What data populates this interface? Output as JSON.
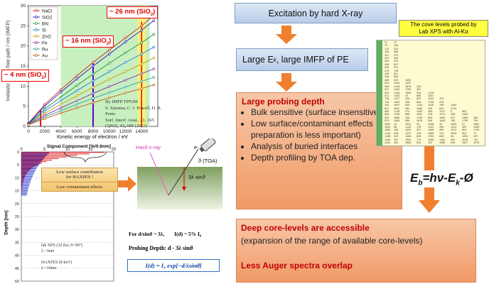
{
  "imfp_chart": {
    "ylabel": "Inelastic mean free path / nm (IMFP)",
    "xlabel": "Kinetic energy of electron / eV",
    "x_ticks": [
      "0",
      "2000",
      "4000",
      "6000",
      "8000",
      "10000",
      "12000",
      "14000"
    ],
    "y_ticks": [
      "0",
      "5",
      "10",
      "15",
      "20",
      "25",
      "30"
    ],
    "legend": [
      "NaCl",
      "SiO2",
      "BN",
      "Si",
      "ZnO",
      "Fe",
      "Ru",
      "Au"
    ],
    "annotation_26": "~ 26 nm (SiO",
    "annotation_16": "~ 16 nm (SiO",
    "annotation_4": "~ 4 nm (SiO",
    "sub2": "2",
    "close_paren": ")",
    "citation_1": "By IMFP TPP2M",
    "citation_2": "S. Tanuma, C. J. Powell, D. R. Penn:",
    "citation_3": "Surf. Interf. Anal., 21, 165 (1993), 43, 689 (2011)"
  },
  "chart_data": {
    "type": "line",
    "x": [
      0,
      2000,
      4000,
      6000,
      8000,
      10000,
      12000,
      14000,
      15500
    ],
    "xlim": [
      0,
      16000
    ],
    "ylim": [
      0,
      30
    ],
    "xlabel": "Kinetic energy of electron / eV",
    "ylabel": "Inelastic mean free path / nm (IMFP)",
    "series": [
      {
        "name": "NaCl",
        "color": "#d02020",
        "values": [
          0.8,
          5.4,
          9.1,
          12.6,
          15.9,
          19.0,
          22.0,
          25.0,
          27.6
        ]
      },
      {
        "name": "SiO2",
        "color": "#2020c0",
        "values": [
          0.7,
          5.0,
          8.5,
          11.8,
          15.0,
          18.0,
          21.0,
          23.9,
          26.3
        ]
      },
      {
        "name": "BN",
        "color": "#209040",
        "values": [
          0.6,
          4.3,
          7.3,
          10.2,
          13.0,
          15.7,
          18.3,
          20.8,
          22.9
        ]
      },
      {
        "name": "Si",
        "color": "#2080d0",
        "values": [
          0.6,
          3.8,
          6.4,
          8.9,
          11.3,
          13.6,
          15.9,
          18.0,
          19.7
        ]
      },
      {
        "name": "ZnO",
        "color": "#c0a000",
        "values": [
          0.5,
          3.2,
          5.5,
          7.6,
          9.7,
          11.7,
          13.6,
          15.5,
          17.0
        ]
      },
      {
        "name": "Fe",
        "color": "#8030a0",
        "values": [
          0.5,
          2.7,
          4.6,
          6.4,
          8.2,
          9.9,
          11.5,
          13.1,
          14.3
        ]
      },
      {
        "name": "Ru",
        "color": "#30a0a0",
        "values": [
          0.4,
          2.3,
          3.9,
          5.5,
          7.0,
          8.4,
          9.8,
          11.2,
          12.2
        ]
      },
      {
        "name": "Au",
        "color": "#c06010",
        "values": [
          0.4,
          1.9,
          3.3,
          4.6,
          5.9,
          7.1,
          8.3,
          9.4,
          10.3
        ]
      }
    ]
  },
  "signal_chart": {
    "title": "Signal Component [%/0.6nm]",
    "x_ticks": [
      "0",
      "5",
      "10",
      "15",
      "20"
    ],
    "y_ticks": [
      "0",
      "5",
      "10",
      "15",
      "20",
      "25",
      "30",
      "35",
      "40",
      "45",
      "50"
    ],
    "ylabel": "Depth [nm]",
    "note_1": "Low surface contribution",
    "note_2": "for HAXPES !",
    "note_3": "Low contaminant effects",
    "lab1": "lab XPS (Al Kα, 0=90°)",
    "lab1b": "λ ~3nm",
    "lab2": "HAXPES (8 keV)",
    "lab2b": "λ ~10nm"
  },
  "probe_diagram": {
    "hard_xray": "Hard x-ray",
    "electron": "e-",
    "toa": "ϑ (TOA)",
    "depth": "3λ sinϑ",
    "for_text": "For d/sinϑ ~ 3λ,",
    "intensity": "I(d) ~ 5% I₀",
    "probing_depth": "Probing Depth:  d - 3λ sinϑ",
    "formula": "I(d) = I₀ exp[−d/λsinϑ]"
  },
  "flow": {
    "excitation": "Excitation by hard X-ray",
    "large_ek_1": "Large E",
    "large_ek_sub": "k",
    "large_ek_2": ",  large IMFP of PE",
    "large_probing_title": "Large probing depth",
    "bullets": [
      "Bulk sensitive (surface insensitive)",
      "Low surface/contaminant effects (surface preparation is less important)",
      "Analysis of buried interfaces",
      "Depth profiling by TOA dep."
    ],
    "deep_title": "Deep core-levels are accessible",
    "deep_text": "(expansion of the range of available core-levels)",
    "auger": "Less Auger spectra overlap"
  },
  "core_levels": {
    "label_1": "The cove levels probed by",
    "label_2": "Lab XPS with Al-Kα"
  },
  "equation": {
    "eb": "E",
    "eb_sub": "b",
    "rest": "=hν-E",
    "ek_sub": "k",
    "phi": "-Ø"
  }
}
